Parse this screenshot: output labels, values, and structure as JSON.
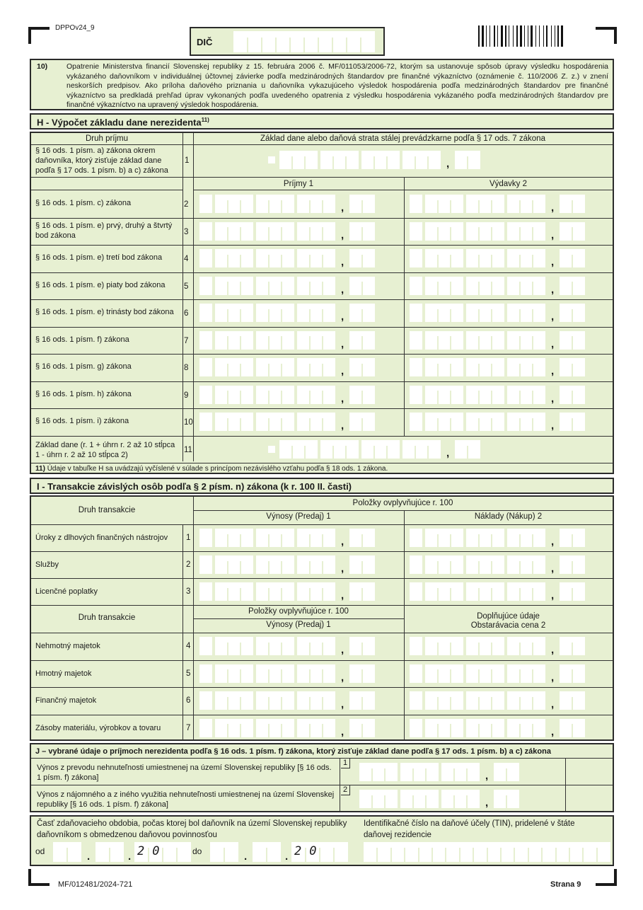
{
  "form_code": "DPPOv24_9",
  "dic_label": "DIČ",
  "note10": {
    "num": "10)",
    "text": "Opatrenie Ministerstva financií Slovenskej republiky z 15. februára 2006 č. MF/011053/2006-72, ktorým sa ustanovuje spôsob úpravy výsledku hospodárenia vykázaného daňovníkom v individuálnej účtovnej závierke podľa medzinárodných štandardov pre finančné výkazníctvo (oznámenie č. 110/2006 Z. z.) v znení neskorších predpisov. Ako príloha daňového priznania u daňovníka vykazujúceho výsledok hospodárenia podľa medzinárodných štandardov pre finančné výkazníctvo sa predkladá prehľad úprav vykonaných podľa uvedeného opatrenia z výsledku hospodárenia vykázaného podľa medzinárodných štandardov pre finančné výkazníctvo na upravený výsledok hospodárenia."
  },
  "sectionH": {
    "title": "H - Výpočet základu dane nerezidenta",
    "title_sup": "11)",
    "col_type": "Druh príjmu",
    "col_base": "Základ dane alebo daňová strata stálej prevádzkarne podľa § 17 ods. 7 zákona",
    "col_income": "Príjmy    1",
    "col_expense": "Výdavky    2",
    "row1": {
      "label": "§ 16 ods. 1 písm. a) zákona okrem daňovníka, ktorý zisťuje základ dane podľa § 17 ods. 1 písm. b) a c) zákona",
      "num": "1"
    },
    "rows": [
      {
        "label": "§ 16 ods. 1 písm. c) zákona",
        "num": "2"
      },
      {
        "label": "§ 16 ods. 1 písm. e) prvý, druhý a štvrtý bod zákona",
        "num": "3"
      },
      {
        "label": "§ 16 ods. 1 písm. e) tretí bod zákona",
        "num": "4"
      },
      {
        "label": "§ 16 ods. 1 písm. e) piaty bod zákona",
        "num": "5"
      },
      {
        "label": "§ 16 ods. 1 písm. e) trinásty bod zákona",
        "num": "6"
      },
      {
        "label": "§ 16 ods. 1 písm. f) zákona",
        "num": "7"
      },
      {
        "label": "§ 16 ods. 1 písm. g) zákona",
        "num": "8"
      },
      {
        "label": "§ 16 ods. 1 písm. h) zákona",
        "num": "9"
      },
      {
        "label": "§ 16 ods. 1 písm. i) zákona",
        "num": "10"
      }
    ],
    "row11": {
      "label": "Základ dane      (r. 1 + úhrn r. 2 až 10 stĺpca 1 - úhrn r. 2 až 10 stĺpca 2)",
      "num": "11"
    },
    "footnote_num": "11)",
    "footnote": "Údaje v tabuľke H sa uvádzajú vyčíslené v súlade s princípom nezávislého vzťahu podľa § 18 ods. 1 zákona."
  },
  "sectionI": {
    "title": "I - Transakcie závislých osôb podľa § 2 písm. n) zákona (k r. 100 II. časti)",
    "col_type": "Druh transakcie",
    "col_items": "Položky ovplyvňujúce r. 100",
    "col_revenue": "Výnosy (Predaj)    1",
    "col_cost": "Náklady (Nákup)    2",
    "rows_a": [
      {
        "label": "Úroky z dlhových finančných nástrojov",
        "num": "1"
      },
      {
        "label": "Služby",
        "num": "2"
      },
      {
        "label": "Licenčné poplatky",
        "num": "3"
      }
    ],
    "col_type2": "Druh transakcie",
    "col_items2": "Položky ovplyvňujúce r. 100",
    "col_revenue2": "Výnosy (Predaj)    1",
    "col_extra": "Doplňujúce údaje",
    "col_acq": "Obstarávacia cena    2",
    "rows_b": [
      {
        "label": "Nehmotný majetok",
        "num": "4"
      },
      {
        "label": "Hmotný majetok",
        "num": "5"
      },
      {
        "label": "Finančný majetok",
        "num": "6"
      },
      {
        "label": "Zásoby materiálu, výrobkov a tovaru",
        "num": "7"
      }
    ]
  },
  "sectionJ": {
    "title": "J – vybrané údaje o príjmoch nerezidenta podľa § 16 ods. 1 písm. f) zákona, ktorý zisťuje základ dane podľa § 17 ods. 1 písm. b) a c) zákona",
    "rows": [
      {
        "label": "Výnos z prevodu nehnuteľnosti umiestnenej na území Slovenskej republiky [§ 16 ods. 1 písm. f) zákona]",
        "num": "1"
      },
      {
        "label": "Výnos z nájomného a z iného využitia nehnuteľnosti umiestnenej na území Slovenskej republiky [§ 16 ods. 1 písm. f) zákona]",
        "num": "2"
      }
    ]
  },
  "period": {
    "label": "Časť zdaňovacieho obdobia, počas ktorej bol daňovník na území Slovenskej republiky daňovníkom s obmedzenou daňovou povinnosťou",
    "from": "od",
    "to": "do",
    "year_prefix": "20",
    "tin_label": "Identifikačné číslo na daňové účely (TIN), pridelené v štáte daňovej rezidencie"
  },
  "footer": {
    "code": "MF/012481/2024-721",
    "page": "Strana 9"
  },
  "colors": {
    "form_green": "#e7f0d2",
    "border": "#2b2b2b"
  }
}
